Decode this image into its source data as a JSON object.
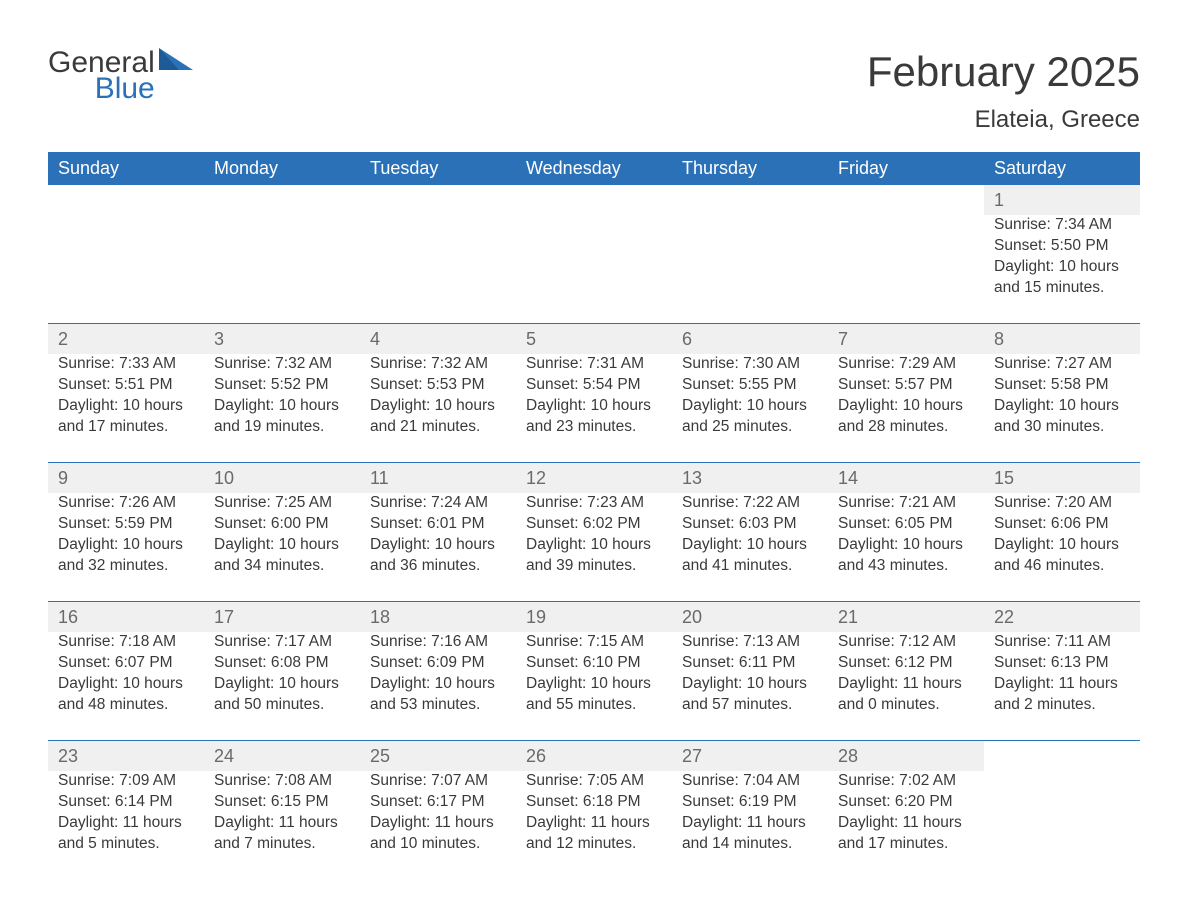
{
  "logo": {
    "general": "General",
    "blue": "Blue"
  },
  "title": "February 2025",
  "location": "Elateia, Greece",
  "colors": {
    "header_bg": "#2a71b8",
    "header_text": "#ffffff",
    "daynum_bg": "#f0f0f0",
    "daynum_text": "#6a6a6a",
    "body_text": "#3a3a3a",
    "row_divider": "#2a71b8",
    "page_bg": "#ffffff"
  },
  "font": {
    "family": "Arial",
    "header_size_pt": 13,
    "title_size_pt": 32,
    "location_size_pt": 18,
    "cell_size_pt": 12,
    "daynum_size_pt": 14
  },
  "weekdays": [
    "Sunday",
    "Monday",
    "Tuesday",
    "Wednesday",
    "Thursday",
    "Friday",
    "Saturday"
  ],
  "weeks": [
    [
      null,
      null,
      null,
      null,
      null,
      null,
      {
        "day": "1",
        "sunrise": "Sunrise: 7:34 AM",
        "sunset": "Sunset: 5:50 PM",
        "daylight": "Daylight: 10 hours and 15 minutes."
      }
    ],
    [
      {
        "day": "2",
        "sunrise": "Sunrise: 7:33 AM",
        "sunset": "Sunset: 5:51 PM",
        "daylight": "Daylight: 10 hours and 17 minutes."
      },
      {
        "day": "3",
        "sunrise": "Sunrise: 7:32 AM",
        "sunset": "Sunset: 5:52 PM",
        "daylight": "Daylight: 10 hours and 19 minutes."
      },
      {
        "day": "4",
        "sunrise": "Sunrise: 7:32 AM",
        "sunset": "Sunset: 5:53 PM",
        "daylight": "Daylight: 10 hours and 21 minutes."
      },
      {
        "day": "5",
        "sunrise": "Sunrise: 7:31 AM",
        "sunset": "Sunset: 5:54 PM",
        "daylight": "Daylight: 10 hours and 23 minutes."
      },
      {
        "day": "6",
        "sunrise": "Sunrise: 7:30 AM",
        "sunset": "Sunset: 5:55 PM",
        "daylight": "Daylight: 10 hours and 25 minutes."
      },
      {
        "day": "7",
        "sunrise": "Sunrise: 7:29 AM",
        "sunset": "Sunset: 5:57 PM",
        "daylight": "Daylight: 10 hours and 28 minutes."
      },
      {
        "day": "8",
        "sunrise": "Sunrise: 7:27 AM",
        "sunset": "Sunset: 5:58 PM",
        "daylight": "Daylight: 10 hours and 30 minutes."
      }
    ],
    [
      {
        "day": "9",
        "sunrise": "Sunrise: 7:26 AM",
        "sunset": "Sunset: 5:59 PM",
        "daylight": "Daylight: 10 hours and 32 minutes."
      },
      {
        "day": "10",
        "sunrise": "Sunrise: 7:25 AM",
        "sunset": "Sunset: 6:00 PM",
        "daylight": "Daylight: 10 hours and 34 minutes."
      },
      {
        "day": "11",
        "sunrise": "Sunrise: 7:24 AM",
        "sunset": "Sunset: 6:01 PM",
        "daylight": "Daylight: 10 hours and 36 minutes."
      },
      {
        "day": "12",
        "sunrise": "Sunrise: 7:23 AM",
        "sunset": "Sunset: 6:02 PM",
        "daylight": "Daylight: 10 hours and 39 minutes."
      },
      {
        "day": "13",
        "sunrise": "Sunrise: 7:22 AM",
        "sunset": "Sunset: 6:03 PM",
        "daylight": "Daylight: 10 hours and 41 minutes."
      },
      {
        "day": "14",
        "sunrise": "Sunrise: 7:21 AM",
        "sunset": "Sunset: 6:05 PM",
        "daylight": "Daylight: 10 hours and 43 minutes."
      },
      {
        "day": "15",
        "sunrise": "Sunrise: 7:20 AM",
        "sunset": "Sunset: 6:06 PM",
        "daylight": "Daylight: 10 hours and 46 minutes."
      }
    ],
    [
      {
        "day": "16",
        "sunrise": "Sunrise: 7:18 AM",
        "sunset": "Sunset: 6:07 PM",
        "daylight": "Daylight: 10 hours and 48 minutes."
      },
      {
        "day": "17",
        "sunrise": "Sunrise: 7:17 AM",
        "sunset": "Sunset: 6:08 PM",
        "daylight": "Daylight: 10 hours and 50 minutes."
      },
      {
        "day": "18",
        "sunrise": "Sunrise: 7:16 AM",
        "sunset": "Sunset: 6:09 PM",
        "daylight": "Daylight: 10 hours and 53 minutes."
      },
      {
        "day": "19",
        "sunrise": "Sunrise: 7:15 AM",
        "sunset": "Sunset: 6:10 PM",
        "daylight": "Daylight: 10 hours and 55 minutes."
      },
      {
        "day": "20",
        "sunrise": "Sunrise: 7:13 AM",
        "sunset": "Sunset: 6:11 PM",
        "daylight": "Daylight: 10 hours and 57 minutes."
      },
      {
        "day": "21",
        "sunrise": "Sunrise: 7:12 AM",
        "sunset": "Sunset: 6:12 PM",
        "daylight": "Daylight: 11 hours and 0 minutes."
      },
      {
        "day": "22",
        "sunrise": "Sunrise: 7:11 AM",
        "sunset": "Sunset: 6:13 PM",
        "daylight": "Daylight: 11 hours and 2 minutes."
      }
    ],
    [
      {
        "day": "23",
        "sunrise": "Sunrise: 7:09 AM",
        "sunset": "Sunset: 6:14 PM",
        "daylight": "Daylight: 11 hours and 5 minutes."
      },
      {
        "day": "24",
        "sunrise": "Sunrise: 7:08 AM",
        "sunset": "Sunset: 6:15 PM",
        "daylight": "Daylight: 11 hours and 7 minutes."
      },
      {
        "day": "25",
        "sunrise": "Sunrise: 7:07 AM",
        "sunset": "Sunset: 6:17 PM",
        "daylight": "Daylight: 11 hours and 10 minutes."
      },
      {
        "day": "26",
        "sunrise": "Sunrise: 7:05 AM",
        "sunset": "Sunset: 6:18 PM",
        "daylight": "Daylight: 11 hours and 12 minutes."
      },
      {
        "day": "27",
        "sunrise": "Sunrise: 7:04 AM",
        "sunset": "Sunset: 6:19 PM",
        "daylight": "Daylight: 11 hours and 14 minutes."
      },
      {
        "day": "28",
        "sunrise": "Sunrise: 7:02 AM",
        "sunset": "Sunset: 6:20 PM",
        "daylight": "Daylight: 11 hours and 17 minutes."
      },
      null
    ]
  ]
}
